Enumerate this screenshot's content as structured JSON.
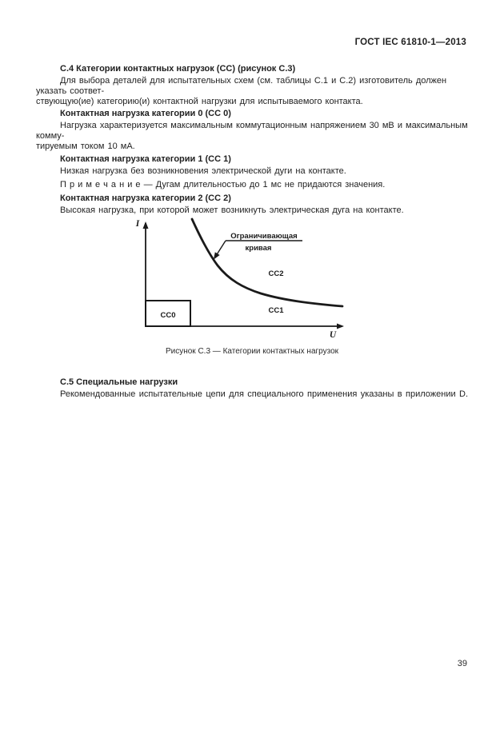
{
  "page": {
    "header": "ГОСТ IEC 61810-1—2013",
    "page_number": "39"
  },
  "sections": {
    "c4": {
      "heading": "С.4 Категории контактных нагрузок (СС) (рисунок С.3)",
      "para1_lines": [
        "Для выбора деталей для испытательных схем (см. таблицы С.1 и С.2) изготовитель должен указать соответ-",
        "ствующую(ие) категорию(и) контактной нагрузки для испытываемого контакта."
      ],
      "cc0_heading": "Контактная нагрузка категории 0 (СС 0)",
      "cc0_lines": [
        "Нагрузка характеризуется максимальным коммутационным напряжением 30 мВ и максимальным комму-",
        "тируемым током 10 мА."
      ],
      "cc1_heading": "Контактная нагрузка категории 1 (СС 1)",
      "cc1_text": "Низкая нагрузка без возникновения электрической дуги на контакте.",
      "note": "П р и м е ч а н и е — Дугам длительностью до 1 мс не придаются значения.",
      "cc2_heading": "Контактная нагрузка категории 2 (СС 2)",
      "cc2_text": "Высокая нагрузка, при которой может возникнуть электрическая дуга на контакте."
    },
    "c5": {
      "heading": "С.5 Специальные нагрузки",
      "para": "Рекомендованные испытательные цепи для специального применения указаны в приложении D."
    }
  },
  "figure": {
    "caption": "Рисунок С.3 — Категории контактных нагрузок",
    "y_axis_label": "I",
    "x_axis_label": "U",
    "curve_label_line1": "Ограничивающая",
    "curve_label_line2": "кривая",
    "region_cc0": "СС0",
    "region_cc1": "СС1",
    "region_cc2": "СС2",
    "ink_color": "#1a1a1a"
  }
}
